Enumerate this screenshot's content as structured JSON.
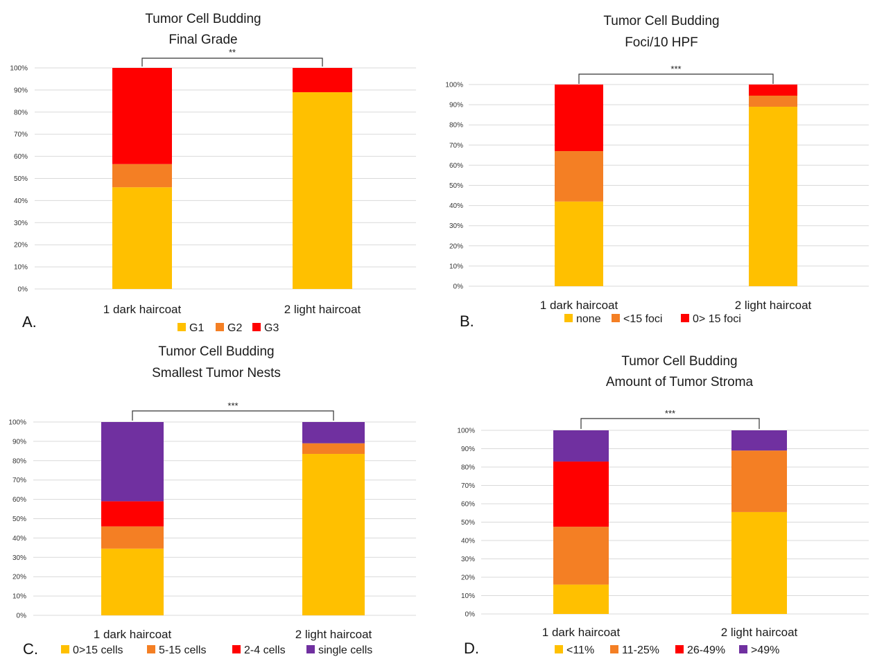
{
  "colors": {
    "yellow": "#FFC000",
    "orange": "#F47F24",
    "red": "#FF0000",
    "purple": "#7030A0",
    "grid": "#d9d9d9"
  },
  "chart_data": [
    {
      "type": "bar",
      "stacked": true,
      "panel": "A.",
      "title": [
        "Tumor Cell Budding",
        "Final Grade"
      ],
      "categories": [
        "1 dark haircoat",
        "2 light haircoat"
      ],
      "ylim": [
        0,
        100
      ],
      "yticks": [
        "0%",
        "10%",
        "20%",
        "30%",
        "40%",
        "50%",
        "60%",
        "70%",
        "80%",
        "90%",
        "100%"
      ],
      "significance": "**",
      "legend_position": "bottom",
      "series": [
        {
          "name": "G1",
          "color": "#FFC000",
          "values": [
            46,
            89
          ]
        },
        {
          "name": "G2",
          "color": "#F47F24",
          "values": [
            10.5,
            0
          ]
        },
        {
          "name": "G3",
          "color": "#FF0000",
          "values": [
            43.5,
            11
          ]
        }
      ]
    },
    {
      "type": "bar",
      "stacked": true,
      "panel": "B.",
      "title": [
        "Tumor Cell Budding",
        "Foci/10 HPF"
      ],
      "categories": [
        "1 dark haircoat",
        "2 light haircoat"
      ],
      "ylim": [
        0,
        100
      ],
      "yticks": [
        "0%",
        "10%",
        "20%",
        "30%",
        "40%",
        "50%",
        "60%",
        "70%",
        "80%",
        "90%",
        "100%"
      ],
      "significance": "***",
      "legend_position": "bottom",
      "series": [
        {
          "name": "none",
          "color": "#FFC000",
          "values": [
            42,
            89
          ]
        },
        {
          "name": "<15 foci",
          "color": "#F47F24",
          "values": [
            25,
            5.5
          ]
        },
        {
          "name": "0> 15 foci",
          "color": "#FF0000",
          "values": [
            33,
            5.5
          ]
        }
      ]
    },
    {
      "type": "bar",
      "stacked": true,
      "panel": "C.",
      "title": [
        "Tumor Cell Budding",
        "Smallest Tumor Nests"
      ],
      "categories": [
        "1 dark haircoat",
        "2 light haircoat"
      ],
      "ylim": [
        0,
        100
      ],
      "yticks": [
        "0%",
        "10%",
        "20%",
        "30%",
        "40%",
        "50%",
        "60%",
        "70%",
        "80%",
        "90%",
        "100%"
      ],
      "significance": "***",
      "legend_position": "bottom",
      "series": [
        {
          "name": "0>15 cells",
          "color": "#FFC000",
          "values": [
            34.5,
            83.5
          ]
        },
        {
          "name": "5-15 cells",
          "color": "#F47F24",
          "values": [
            11.5,
            5.5
          ]
        },
        {
          "name": "2-4 cells",
          "color": "#FF0000",
          "values": [
            13,
            0
          ]
        },
        {
          "name": "single cells",
          "color": "#7030A0",
          "values": [
            41,
            11
          ]
        }
      ]
    },
    {
      "type": "bar",
      "stacked": true,
      "panel": "D.",
      "title": [
        "Tumor Cell Budding",
        "Amount of Tumor Stroma"
      ],
      "categories": [
        "1 dark haircoat",
        "2 light haircoat"
      ],
      "ylim": [
        0,
        100
      ],
      "yticks": [
        "0%",
        "10%",
        "20%",
        "30%",
        "40%",
        "50%",
        "60%",
        "70%",
        "80%",
        "90%",
        "100%"
      ],
      "significance": "***",
      "legend_position": "bottom",
      "series": [
        {
          "name": "<11%",
          "color": "#FFC000",
          "values": [
            16,
            55.5
          ]
        },
        {
          "name": "11-25%",
          "color": "#F47F24",
          "values": [
            31.5,
            33.5
          ]
        },
        {
          "name": "26-49%",
          "color": "#FF0000",
          "values": [
            35.5,
            0
          ]
        },
        {
          "name": ">49%",
          "color": "#7030A0",
          "values": [
            17,
            11
          ]
        }
      ]
    }
  ]
}
